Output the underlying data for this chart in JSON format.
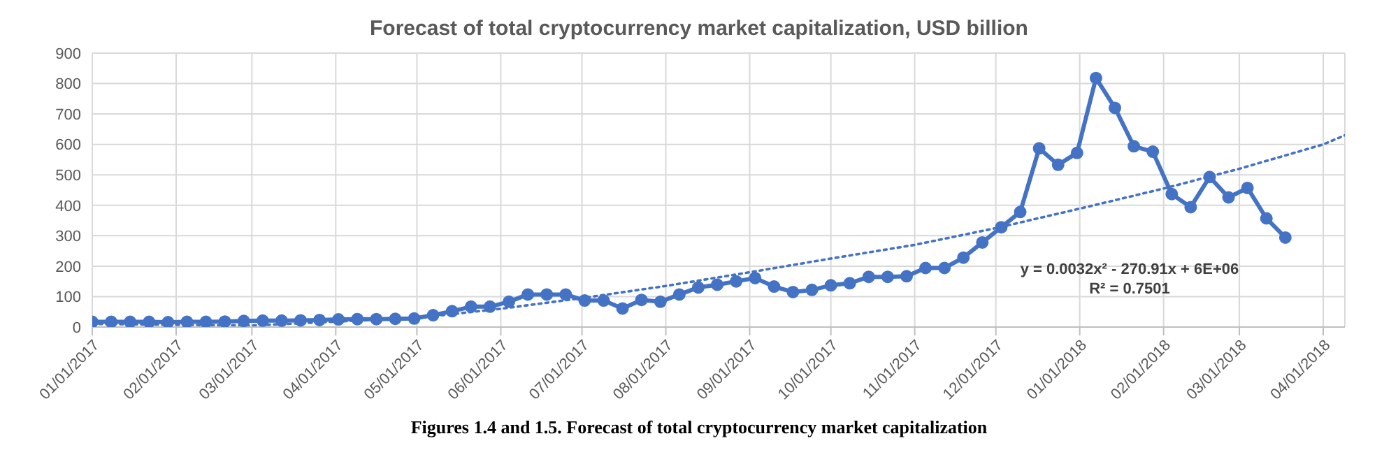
{
  "chart_data": {
    "type": "line",
    "title": "Forecast of total cryptocurrency market capitalization, USD billion",
    "annotations": [
      "y = 0.0032x² - 270.91x + 6E+06",
      "R² = 0.7501",
      "Figures 1.4 and 1.5. Forecast of total cryptocurrency market capitalization"
    ],
    "x": [
      "2017-01-01",
      "2017-01-08",
      "2017-01-15",
      "2017-01-22",
      "2017-01-29",
      "2017-02-05",
      "2017-02-12",
      "2017-02-19",
      "2017-02-26",
      "2017-03-05",
      "2017-03-12",
      "2017-03-19",
      "2017-03-26",
      "2017-04-02",
      "2017-04-09",
      "2017-04-16",
      "2017-04-23",
      "2017-04-30",
      "2017-05-07",
      "2017-05-14",
      "2017-05-21",
      "2017-05-28",
      "2017-06-04",
      "2017-06-11",
      "2017-06-18",
      "2017-06-25",
      "2017-07-02",
      "2017-07-09",
      "2017-07-16",
      "2017-07-23",
      "2017-07-30",
      "2017-08-06",
      "2017-08-13",
      "2017-08-20",
      "2017-08-27",
      "2017-09-03",
      "2017-09-10",
      "2017-09-17",
      "2017-09-24",
      "2017-10-01",
      "2017-10-08",
      "2017-10-15",
      "2017-10-22",
      "2017-10-29",
      "2017-11-05",
      "2017-11-12",
      "2017-11-19",
      "2017-11-26",
      "2017-12-03",
      "2017-12-10",
      "2017-12-17",
      "2017-12-24",
      "2017-12-31",
      "2018-01-07",
      "2018-01-14",
      "2018-01-21",
      "2018-01-28",
      "2018-02-04",
      "2018-02-11",
      "2018-02-18",
      "2018-02-25",
      "2018-03-04",
      "2018-03-11",
      "2018-03-18"
    ],
    "series": [
      {
        "color": "#4472c4",
        "marker": "circle",
        "line_style": "solid",
        "values": [
          17,
          17,
          17,
          17,
          16,
          17,
          17,
          18,
          20,
          21,
          21,
          22,
          23,
          25,
          26,
          26,
          27,
          28,
          39,
          52,
          67,
          67,
          83,
          107,
          107,
          107,
          87,
          87,
          61,
          89,
          83,
          107,
          130,
          139,
          150,
          161,
          133,
          115,
          122,
          137,
          144,
          165,
          165,
          167,
          194,
          194,
          228,
          278,
          328,
          378,
          587,
          533,
          572,
          818,
          720,
          594,
          576,
          437,
          394,
          493,
          426,
          457,
          357,
          294
        ]
      },
      {
        "type": "line",
        "color": "#4472c4",
        "marker": "none",
        "line_style": "dotted",
        "x": [
          "2017-01-01",
          "2017-03-01",
          "2017-05-01",
          "2017-06-01",
          "2017-07-01",
          "2017-08-01",
          "2017-09-01",
          "2017-10-01",
          "2017-11-01",
          "2017-12-01",
          "2018-01-01",
          "2018-02-01",
          "2018-03-01",
          "2018-04-01",
          "2018-04-09"
        ],
        "values": [
          10,
          5,
          30,
          60,
          95,
          135,
          180,
          225,
          270,
          325,
          389,
          455,
          520,
          600,
          630
        ]
      }
    ],
    "xlim": [
      "2017-01-01",
      "2018-04-09"
    ],
    "xticks": [
      {
        "value": "2017-01-01",
        "label": "01/01/2017"
      },
      {
        "value": "2017-02-01",
        "label": "02/01/2017"
      },
      {
        "value": "2017-03-01",
        "label": "03/01/2017"
      },
      {
        "value": "2017-04-01",
        "label": "04/01/2017"
      },
      {
        "value": "2017-05-01",
        "label": "05/01/2017"
      },
      {
        "value": "2017-06-01",
        "label": "06/01/2017"
      },
      {
        "value": "2017-07-01",
        "label": "07/01/2017"
      },
      {
        "value": "2017-08-01",
        "label": "08/01/2017"
      },
      {
        "value": "2017-09-01",
        "label": "09/01/2017"
      },
      {
        "value": "2017-10-01",
        "label": "10/01/2017"
      },
      {
        "value": "2017-11-01",
        "label": "11/01/2017"
      },
      {
        "value": "2017-12-01",
        "label": "12/01/2017"
      },
      {
        "value": "2018-01-01",
        "label": "01/01/2018"
      },
      {
        "value": "2018-02-01",
        "label": "02/01/2018"
      },
      {
        "value": "2018-03-01",
        "label": "03/01/2018"
      },
      {
        "value": "2018-04-01",
        "label": "04/01/2018"
      }
    ],
    "ylim": [
      0,
      900
    ],
    "yticks": [
      0,
      100,
      200,
      300,
      400,
      500,
      600,
      700,
      800,
      900
    ],
    "grid": true
  }
}
